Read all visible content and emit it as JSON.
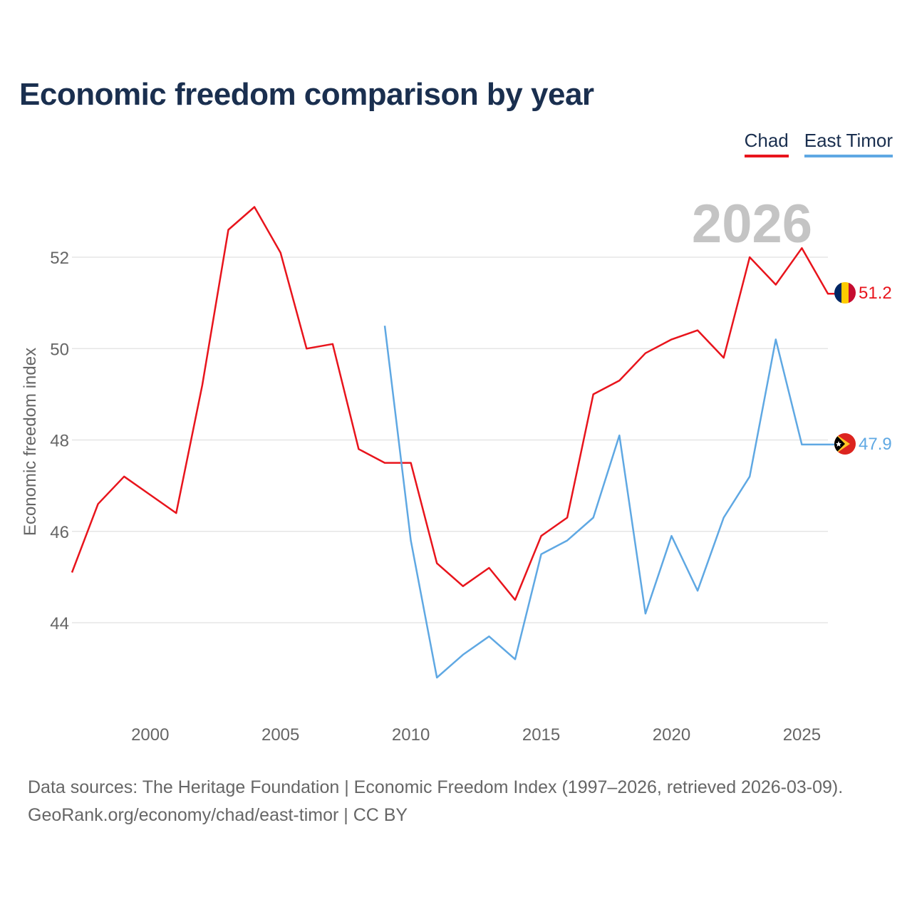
{
  "title": "Economic freedom comparison by year",
  "source_line1": "Data sources: The Heritage Foundation | Economic Freedom Index (1997–2026, retrieved 2026-03-09).",
  "source_line2": "GeoRank.org/economy/chad/east-timor | CC BY",
  "chart_data": {
    "type": "line",
    "title": "Economic freedom comparison by year",
    "xlabel": "",
    "ylabel": "Economic freedom index",
    "xlim": [
      1997,
      2026
    ],
    "ylim": [
      41.9,
      53.6
    ],
    "xticks": [
      2000,
      2005,
      2010,
      2015,
      2020,
      2025
    ],
    "yticks": [
      44,
      46,
      48,
      50,
      52
    ],
    "grid": true,
    "legend_position": "top-right",
    "year_watermark": "2026",
    "series": [
      {
        "name": "Chad",
        "color": "#e8141c",
        "end_label": "51.2",
        "flag": "chad-flag-icon",
        "x": [
          1997,
          1998,
          1999,
          2000,
          2001,
          2002,
          2003,
          2004,
          2005,
          2006,
          2007,
          2008,
          2009,
          2010,
          2011,
          2012,
          2013,
          2014,
          2015,
          2016,
          2017,
          2018,
          2019,
          2020,
          2021,
          2022,
          2023,
          2024,
          2025,
          2026
        ],
        "values": [
          45.1,
          46.6,
          47.2,
          46.8,
          46.4,
          49.2,
          52.6,
          53.1,
          52.1,
          50.0,
          50.1,
          47.8,
          47.5,
          47.5,
          45.3,
          44.8,
          45.2,
          44.5,
          45.9,
          46.3,
          49.0,
          49.3,
          49.9,
          50.2,
          50.4,
          49.8,
          52.0,
          51.4,
          52.2,
          51.2
        ]
      },
      {
        "name": "East Timor",
        "color": "#5fa8e3",
        "end_label": "47.9",
        "flag": "east-timor-flag-icon",
        "x": [
          2009,
          2010,
          2011,
          2012,
          2013,
          2014,
          2015,
          2016,
          2017,
          2018,
          2019,
          2020,
          2021,
          2022,
          2023,
          2024,
          2025,
          2026
        ],
        "values": [
          50.5,
          45.8,
          42.8,
          43.3,
          43.7,
          43.2,
          45.5,
          45.8,
          46.3,
          48.1,
          44.2,
          45.9,
          44.7,
          46.3,
          47.2,
          50.2,
          47.9,
          47.9
        ]
      }
    ]
  }
}
